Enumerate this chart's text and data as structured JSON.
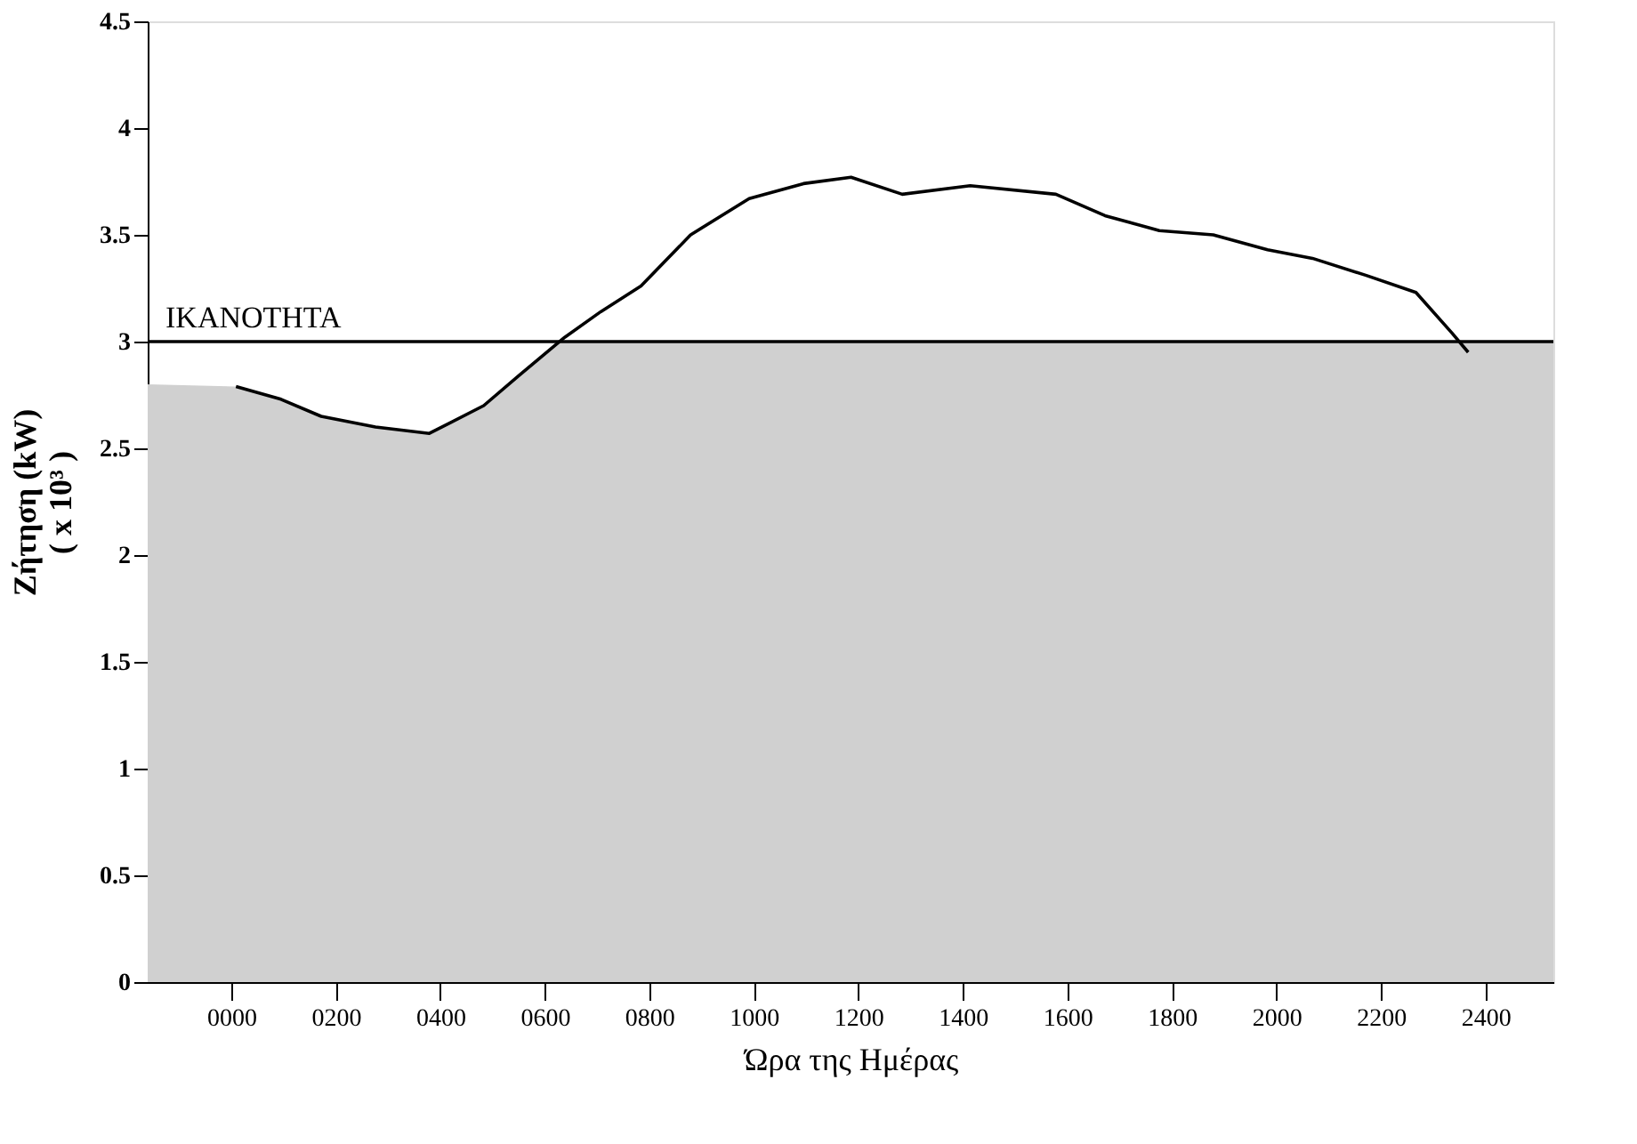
{
  "chart_data": {
    "type": "line",
    "xlabel": "Ώρα της Ημέρας",
    "ylabel": "Ζήτηση (kW)\n( x 10³ )",
    "xlim": [
      -160,
      2530
    ],
    "ylim": [
      0,
      4.5
    ],
    "xticks": [
      {
        "value": 0,
        "label": "0000"
      },
      {
        "value": 200,
        "label": "0200"
      },
      {
        "value": 400,
        "label": "0400"
      },
      {
        "value": 600,
        "label": "0600"
      },
      {
        "value": 800,
        "label": "0800"
      },
      1000,
      1200,
      1400,
      1600,
      1800,
      2000,
      2200,
      2400
    ],
    "yticks": [
      0,
      0.5,
      1,
      1.5,
      2,
      2.5,
      3,
      3.5,
      4,
      4.5
    ],
    "grid": false,
    "series": [
      {
        "type": "area",
        "color": "#d0d0d0",
        "x": [
          -160,
          9,
          95,
          172,
          276,
          379,
          483,
          550,
          630,
          2530
        ],
        "values": [
          2.8,
          2.79,
          2.73,
          2.65,
          2.6,
          2.57,
          2.7,
          2.84,
          3,
          3
        ]
      },
      {
        "color": "#000000",
        "line_style": "solid",
        "x": [
          9,
          95,
          172,
          276,
          379,
          483,
          550,
          638,
          707,
          784,
          879,
          991,
          1095,
          1186,
          1284,
          1414,
          1578,
          1672,
          1776,
          1879,
          1983,
          2069,
          2172,
          2267,
          2336,
          2367
        ],
        "values": [
          2.79,
          2.73,
          2.65,
          2.6,
          2.57,
          2.7,
          2.84,
          3.02,
          3.14,
          3.26,
          3.5,
          3.67,
          3.74,
          3.77,
          3.69,
          3.73,
          3.69,
          3.59,
          3.52,
          3.5,
          3.43,
          3.39,
          3.31,
          3.23,
          3.04,
          2.95
        ]
      }
    ],
    "ref_lines": [
      {
        "axis": "y",
        "value": 3,
        "label": "ΙΚΑΝΟΤΗΤΑ",
        "color": "#000000"
      }
    ]
  }
}
